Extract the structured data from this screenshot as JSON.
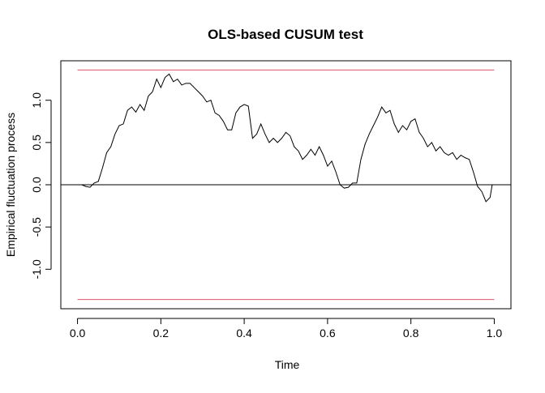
{
  "chart_data": {
    "type": "line",
    "title": "OLS-based CUSUM test",
    "x_label": "Time",
    "y_label": "Empirical fluctuation process",
    "x": [
      0.01,
      0.02,
      0.03,
      0.04,
      0.05,
      0.06,
      0.07,
      0.08,
      0.09,
      0.1,
      0.11,
      0.12,
      0.13,
      0.14,
      0.15,
      0.16,
      0.17,
      0.18,
      0.19,
      0.2,
      0.21,
      0.22,
      0.23,
      0.24,
      0.25,
      0.26,
      0.27,
      0.28,
      0.29,
      0.3,
      0.31,
      0.32,
      0.33,
      0.34,
      0.35,
      0.36,
      0.37,
      0.38,
      0.39,
      0.4,
      0.41,
      0.42,
      0.43,
      0.44,
      0.45,
      0.46,
      0.47,
      0.48,
      0.49,
      0.5,
      0.51,
      0.52,
      0.53,
      0.54,
      0.55,
      0.56,
      0.57,
      0.58,
      0.59,
      0.6,
      0.61,
      0.62,
      0.63,
      0.64,
      0.65,
      0.66,
      0.67,
      0.68,
      0.69,
      0.7,
      0.71,
      0.72,
      0.73,
      0.74,
      0.75,
      0.76,
      0.77,
      0.78,
      0.79,
      0.8,
      0.81,
      0.82,
      0.83,
      0.84,
      0.85,
      0.86,
      0.87,
      0.88,
      0.89,
      0.9,
      0.91,
      0.92,
      0.93,
      0.94,
      0.95,
      0.96,
      0.97,
      0.98,
      0.99,
      0.995
    ],
    "series": [
      {
        "name": "Empirical fluctuation process",
        "color": "#000000",
        "values": [
          0.0,
          -0.02,
          -0.03,
          0.02,
          0.04,
          0.2,
          0.38,
          0.45,
          0.6,
          0.7,
          0.72,
          0.88,
          0.92,
          0.86,
          0.95,
          0.88,
          1.05,
          1.1,
          1.25,
          1.15,
          1.27,
          1.31,
          1.22,
          1.25,
          1.18,
          1.2,
          1.2,
          1.15,
          1.1,
          1.05,
          0.98,
          1.0,
          0.85,
          0.82,
          0.75,
          0.65,
          0.65,
          0.85,
          0.92,
          0.95,
          0.93,
          0.55,
          0.6,
          0.72,
          0.6,
          0.5,
          0.55,
          0.5,
          0.55,
          0.62,
          0.58,
          0.45,
          0.4,
          0.3,
          0.35,
          0.42,
          0.35,
          0.45,
          0.35,
          0.22,
          0.28,
          0.15,
          0.0,
          -0.04,
          -0.03,
          0.02,
          0.02,
          0.3,
          0.48,
          0.6,
          0.7,
          0.8,
          0.92,
          0.85,
          0.88,
          0.72,
          0.62,
          0.7,
          0.65,
          0.75,
          0.78,
          0.62,
          0.55,
          0.45,
          0.5,
          0.4,
          0.45,
          0.38,
          0.35,
          0.38,
          0.3,
          0.35,
          0.32,
          0.3,
          0.15,
          -0.02,
          -0.08,
          -0.2,
          -0.15,
          0.0
        ]
      }
    ],
    "boundaries": [
      1.358,
      -1.358
    ],
    "boundary_color": "#df536b",
    "reference_line": 0,
    "xlim": [
      -0.04,
      1.04
    ],
    "xticks": [
      {
        "value": 0,
        "label": "0.0"
      },
      0.2,
      0.4,
      0.6,
      0.8,
      {
        "value": 1,
        "label": "1.0"
      }
    ],
    "ylim": [
      -1.467,
      1.467
    ],
    "yticks": [
      {
        "value": -1,
        "label": "-1.0"
      },
      -0.5,
      {
        "value": 0,
        "label": "0.0"
      },
      0.5,
      {
        "value": 1,
        "label": "1.0"
      }
    ]
  }
}
